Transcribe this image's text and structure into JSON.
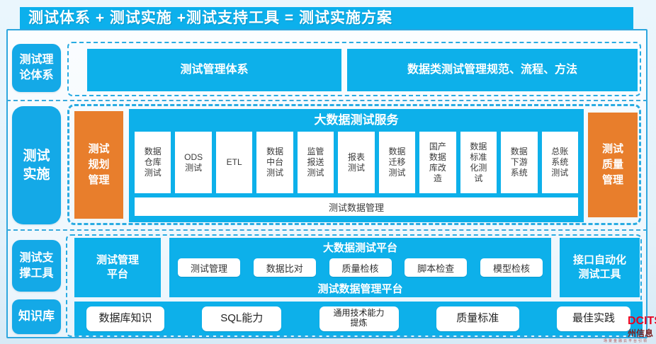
{
  "colors": {
    "cyan": "#0db0ea",
    "orange": "#e87e2c",
    "dashed_border": "#29abe2",
    "frame_border": "#2ea6de",
    "text_dark": "#3a3a3a",
    "logo_red": "#e8001f"
  },
  "title_bar": {
    "text": "测试体系 + 测试实施 +测试支持工具 = 测试实施方案"
  },
  "sidebar": {
    "items": [
      {
        "label": "测试理\n论体系"
      },
      {
        "label": "测试\n实施"
      },
      {
        "label": "测试支\n撑工具"
      },
      {
        "label": "知识库"
      }
    ]
  },
  "row_theory": {
    "boxes": [
      "测试管理体系",
      "数据类测试管理规范、流程、方法"
    ]
  },
  "row_implementation": {
    "left_box": "测试\n规划\n管理",
    "panel_title": "大数据测试服务",
    "cells": [
      "数据\n仓库\n测试",
      "ODS\n测试",
      "ETL",
      "数据\n中台\n测试",
      "监管\n报送\n测试",
      "报表\n测试",
      "数据\n迁移\n测试",
      "国产\n数据\n库改\n造",
      "数据\n标准\n化测\n试",
      "数据\n下游\n系统",
      "总账\n系统\n测试"
    ],
    "bottom_bar": "测试数据管理",
    "right_box": "测试\n质量\n管理"
  },
  "row_support": {
    "left_box": "测试管理\n平台",
    "panel_title": "大数据测试平台",
    "pills": [
      "测试管理",
      "数据比对",
      "质量检核",
      "脚本检查",
      "模型检核"
    ],
    "panel_footer": "测试数据管理平台",
    "right_box": "接口自动化\n测试工具"
  },
  "row_knowledge": {
    "pills": [
      "数据库知识",
      "SQL能力",
      "通用技术能力\n提炼",
      "质量标准",
      "最佳实践"
    ]
  },
  "logo": {
    "letters": "DCITS",
    "cjk": "州信息",
    "caption": "场景金融云平台引领"
  }
}
